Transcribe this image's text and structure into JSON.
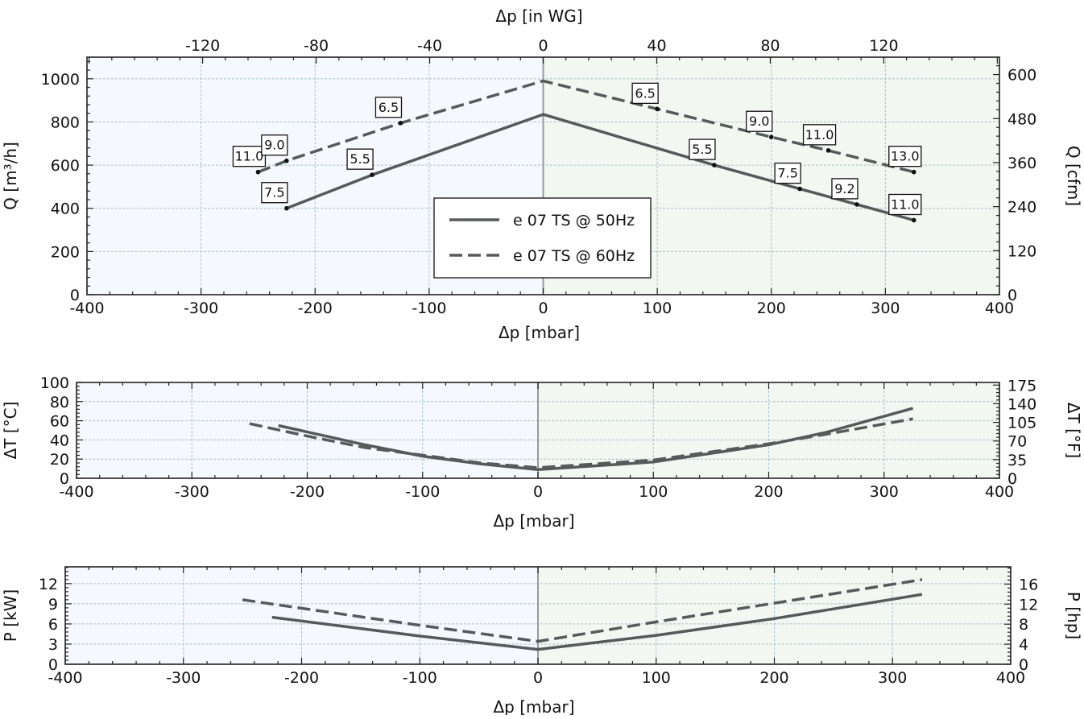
{
  "colors": {
    "series": "#555a5a",
    "grid": "#a9bec9",
    "zero_line": "#9a9a9a",
    "left_bg": "#f5f8fd",
    "right_bg": "#f2f7f1",
    "frame": "#222222"
  },
  "chart_data": [
    {
      "id": "flow",
      "type": "line",
      "xlabel": "Δp [mbar]",
      "x2label": "Δp [in WG]",
      "ylabel": "Q [m³/h]",
      "y2label": "Q [cfm]",
      "xlim": [
        -400,
        400
      ],
      "ylim": [
        0,
        1100
      ],
      "y2lim": [
        0,
        647.4
      ],
      "xticks": [
        "-400",
        "-300",
        "-200",
        "-100",
        "0",
        "100",
        "200",
        "300",
        "400"
      ],
      "yticks": [
        "0",
        "200",
        "400",
        "600",
        "800",
        "1000"
      ],
      "x2ticks": [
        "-120",
        "-80",
        "-40",
        "0",
        "40",
        "80",
        "120"
      ],
      "y2ticks": [
        "0",
        "120",
        "240",
        "360",
        "480",
        "600"
      ],
      "grid": true,
      "legend": {
        "placement": "center",
        "entries": [
          {
            "label": "e 07 TS @ 50Hz",
            "style": "solid"
          },
          {
            "label": "e 07 TS @ 60Hz",
            "style": "dashed"
          }
        ]
      },
      "series": [
        {
          "name": "e 07 TS @ 50Hz",
          "style": "solid",
          "x": [
            -225,
            -150,
            0,
            150,
            225,
            275,
            325
          ],
          "y": [
            400,
            555,
            835,
            600,
            490,
            418,
            345
          ]
        },
        {
          "name": "e 07 TS @ 60Hz",
          "style": "dashed",
          "x": [
            -250,
            -225,
            -125,
            0,
            100,
            200,
            250,
            325
          ],
          "y": [
            568,
            620,
            795,
            990,
            860,
            730,
            668,
            568
          ]
        }
      ],
      "annotations": [
        {
          "x": -225,
          "y": 400,
          "label": "7.5"
        },
        {
          "x": -150,
          "y": 555,
          "label": "5.5"
        },
        {
          "x": 150,
          "y": 600,
          "label": "5.5"
        },
        {
          "x": 225,
          "y": 490,
          "label": "7.5"
        },
        {
          "x": 275,
          "y": 418,
          "label": "9.2"
        },
        {
          "x": 325,
          "y": 345,
          "label": "11.0"
        },
        {
          "x": -250,
          "y": 568,
          "label": "11.0"
        },
        {
          "x": -225,
          "y": 620,
          "label": "9.0"
        },
        {
          "x": -125,
          "y": 795,
          "label": "6.5"
        },
        {
          "x": 100,
          "y": 860,
          "label": "6.5"
        },
        {
          "x": 200,
          "y": 730,
          "label": "9.0"
        },
        {
          "x": 250,
          "y": 668,
          "label": "11.0"
        },
        {
          "x": 325,
          "y": 568,
          "label": "13.0"
        }
      ]
    },
    {
      "id": "temp",
      "type": "line",
      "xlabel": "Δp [mbar]",
      "ylabel": "ΔT [°C]",
      "y2label": "ΔT [°F]",
      "xlim": [
        -400,
        400
      ],
      "ylim": [
        0,
        100
      ],
      "y2lim": [
        0,
        180
      ],
      "xticks": [
        "-400",
        "-300",
        "-200",
        "-100",
        "0",
        "100",
        "200",
        "300",
        "400"
      ],
      "yticks": [
        "0",
        "20",
        "40",
        "60",
        "80",
        "100"
      ],
      "y2ticks": [
        "0",
        "35",
        "70",
        "105",
        "140",
        "175"
      ],
      "grid": true,
      "series": [
        {
          "name": "e 07 TS @ 50Hz",
          "style": "solid",
          "x": [
            -225,
            -150,
            -100,
            -50,
            0,
            100,
            200,
            250,
            325
          ],
          "y": [
            55,
            35,
            23,
            15,
            9,
            17,
            35,
            48,
            73
          ]
        },
        {
          "name": "e 07 TS @ 60Hz",
          "style": "dashed",
          "x": [
            -250,
            -200,
            -150,
            -100,
            -50,
            0,
            100,
            200,
            250,
            325
          ],
          "y": [
            57,
            44,
            32,
            24,
            16,
            11,
            19,
            36,
            46,
            62
          ]
        }
      ]
    },
    {
      "id": "power",
      "type": "line",
      "xlabel": "Δp [mbar]",
      "ylabel": "P [kW]",
      "y2label": "P [hp]",
      "xlim": [
        -400,
        400
      ],
      "ylim": [
        0,
        14.5
      ],
      "y2lim": [
        0,
        19.45
      ],
      "xticks": [
        "-400",
        "-300",
        "-200",
        "-100",
        "0",
        "100",
        "200",
        "300",
        "400"
      ],
      "yticks": [
        "0",
        "3",
        "6",
        "9",
        "12"
      ],
      "y2ticks": [
        "0",
        "4",
        "8",
        "12",
        "16"
      ],
      "grid": true,
      "series": [
        {
          "name": "e 07 TS @ 50Hz",
          "style": "solid",
          "x": [
            -225,
            -100,
            0,
            100,
            200,
            325
          ],
          "y": [
            7.0,
            4.2,
            2.2,
            4.3,
            6.8,
            10.4
          ]
        },
        {
          "name": "e 07 TS @ 60Hz",
          "style": "dashed",
          "x": [
            -250,
            -100,
            0,
            100,
            200,
            325
          ],
          "y": [
            9.6,
            5.8,
            3.4,
            6.3,
            9.1,
            12.6
          ]
        }
      ]
    }
  ]
}
